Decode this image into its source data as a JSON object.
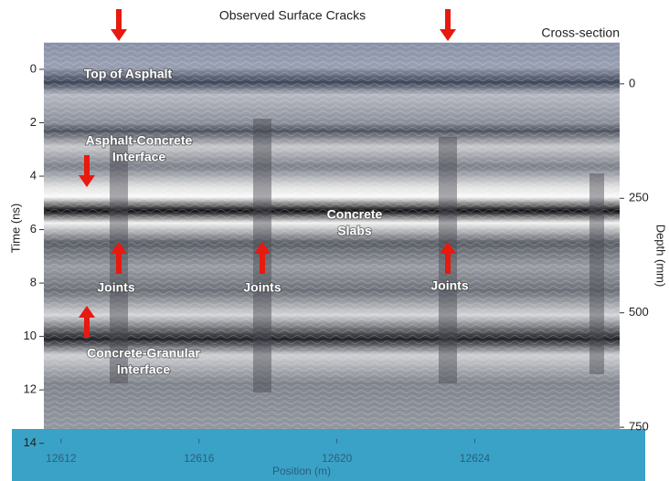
{
  "chart_data": {
    "type": "radargram",
    "title": "Observed Surface Cracks",
    "subtitle": "Cross-section",
    "x_label": "Position (m)",
    "y_label": "Time (ns)",
    "y2_label": "Depth (mm)",
    "xlim": [
      12611.5,
      12628.2
    ],
    "xticks": [
      12612,
      12616,
      12620,
      12624
    ],
    "ylim": [
      14,
      -1
    ],
    "yticks": [
      0,
      2,
      4,
      6,
      8,
      10,
      12,
      14
    ],
    "y2lim": [
      785,
      -90
    ],
    "y2ticks": [
      0,
      250,
      500,
      750
    ],
    "annotations": [
      {
        "lines": [
          "Top of Asphalt"
        ]
      },
      {
        "lines": [
          "Asphalt-Concrete",
          "Interface"
        ]
      },
      {
        "lines": [
          "Concrete",
          "Slabs"
        ]
      },
      {
        "lines": [
          "Joints"
        ]
      },
      {
        "lines": [
          "Joints"
        ]
      },
      {
        "lines": [
          "Joints"
        ]
      },
      {
        "lines": [
          "Concrete-Granular",
          "Interface"
        ]
      }
    ]
  }
}
